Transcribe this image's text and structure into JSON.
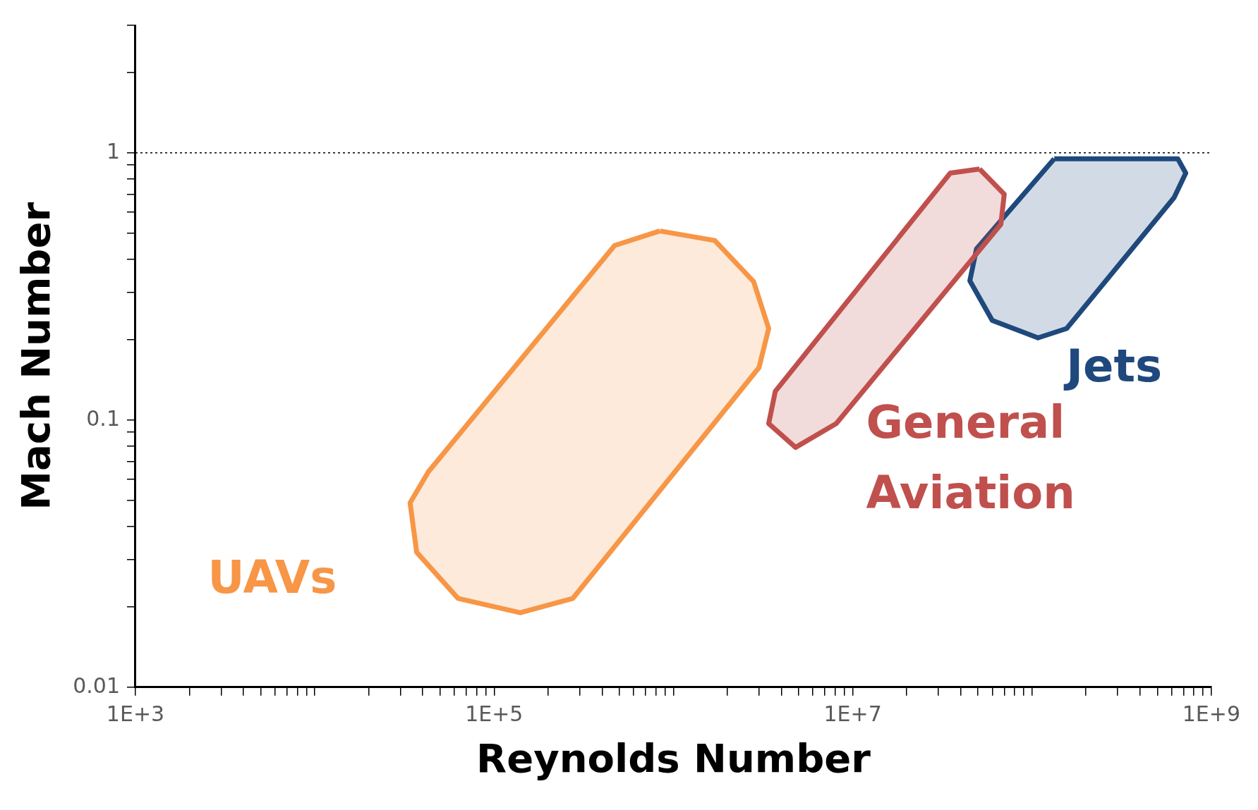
{
  "chart_data": {
    "type": "area",
    "xlabel": "Reynolds Number",
    "ylabel": "Mach Number",
    "log": "xy",
    "grid": false,
    "legend": false,
    "marker": "none",
    "line_style": "solid",
    "xlim": [
      1000,
      1000000000
    ],
    "ylim": [
      0.01,
      3
    ],
    "xticks": [
      {
        "value": 1000,
        "label": "1E+3"
      },
      {
        "value": 2000,
        "label": null
      },
      {
        "value": 3000,
        "label": null
      },
      {
        "value": 4000,
        "label": null
      },
      {
        "value": 5000,
        "label": null
      },
      {
        "value": 6000,
        "label": null
      },
      {
        "value": 7000,
        "label": null
      },
      {
        "value": 8000,
        "label": null
      },
      {
        "value": 9000,
        "label": null
      },
      {
        "value": 10000,
        "label": null
      },
      {
        "value": 20000,
        "label": null
      },
      {
        "value": 30000,
        "label": null
      },
      {
        "value": 40000,
        "label": null
      },
      {
        "value": 50000,
        "label": null
      },
      {
        "value": 60000,
        "label": null
      },
      {
        "value": 70000,
        "label": null
      },
      {
        "value": 80000,
        "label": null
      },
      {
        "value": 90000,
        "label": null
      },
      {
        "value": 100000,
        "label": "1E+5"
      },
      {
        "value": 200000,
        "label": null
      },
      {
        "value": 300000,
        "label": null
      },
      {
        "value": 400000,
        "label": null
      },
      {
        "value": 500000,
        "label": null
      },
      {
        "value": 600000,
        "label": null
      },
      {
        "value": 700000,
        "label": null
      },
      {
        "value": 800000,
        "label": null
      },
      {
        "value": 900000,
        "label": null
      },
      {
        "value": 1000000,
        "label": null
      },
      {
        "value": 2000000,
        "label": null
      },
      {
        "value": 3000000,
        "label": null
      },
      {
        "value": 4000000,
        "label": null
      },
      {
        "value": 5000000,
        "label": null
      },
      {
        "value": 6000000,
        "label": null
      },
      {
        "value": 7000000,
        "label": null
      },
      {
        "value": 8000000,
        "label": null
      },
      {
        "value": 9000000,
        "label": null
      },
      {
        "value": 10000000,
        "label": "1E+7"
      },
      {
        "value": 20000000,
        "label": null
      },
      {
        "value": 30000000,
        "label": null
      },
      {
        "value": 40000000,
        "label": null
      },
      {
        "value": 50000000,
        "label": null
      },
      {
        "value": 60000000,
        "label": null
      },
      {
        "value": 70000000,
        "label": null
      },
      {
        "value": 80000000,
        "label": null
      },
      {
        "value": 90000000,
        "label": null
      },
      {
        "value": 100000000,
        "label": null
      },
      {
        "value": 200000000,
        "label": null
      },
      {
        "value": 300000000,
        "label": null
      },
      {
        "value": 400000000,
        "label": null
      },
      {
        "value": 500000000,
        "label": null
      },
      {
        "value": 600000000,
        "label": null
      },
      {
        "value": 700000000,
        "label": null
      },
      {
        "value": 800000000,
        "label": null
      },
      {
        "value": 900000000,
        "label": null
      },
      {
        "value": 1000000000,
        "label": "1E+9"
      }
    ],
    "yticks": [
      0.01,
      {
        "value": 0.02,
        "label": null
      },
      {
        "value": 0.03,
        "label": null
      },
      {
        "value": 0.04,
        "label": null
      },
      {
        "value": 0.05,
        "label": null
      },
      {
        "value": 0.06,
        "label": null
      },
      {
        "value": 0.07,
        "label": null
      },
      {
        "value": 0.08,
        "label": null
      },
      {
        "value": 0.09,
        "label": null
      },
      0.1,
      {
        "value": 0.2,
        "label": null
      },
      {
        "value": 0.3,
        "label": null
      },
      {
        "value": 0.4,
        "label": null
      },
      {
        "value": 0.5,
        "label": null
      },
      {
        "value": 0.6,
        "label": null
      },
      {
        "value": 0.7,
        "label": null
      },
      {
        "value": 0.8,
        "label": null
      },
      {
        "value": 0.9,
        "label": null
      },
      1,
      {
        "value": 2,
        "label": null
      },
      {
        "value": 3,
        "label": null
      }
    ],
    "ref_lines": [
      {
        "axis": "y",
        "value": 1,
        "line_style": "dotted",
        "color": "#000000"
      }
    ],
    "series": [
      {
        "name": "UAVs",
        "color": "#f79646",
        "x": [
          840000,
          1700000,
          2800000,
          3400000,
          3000000,
          275000,
          140000,
          63000,
          37000,
          34000,
          43000,
          470000,
          840000
        ],
        "values": [
          0.51,
          0.47,
          0.33,
          0.22,
          0.157,
          0.0215,
          0.019,
          0.0215,
          0.032,
          0.049,
          0.064,
          0.45,
          0.51
        ]
      },
      {
        "name": "General Aviation",
        "color": "#c0504d",
        "x": [
          51000000,
          70000000,
          67000000,
          8100000,
          4800000,
          3400000,
          3700000,
          35000000,
          51000000
        ],
        "values": [
          0.87,
          0.7,
          0.54,
          0.097,
          0.079,
          0.097,
          0.128,
          0.84,
          0.87
        ]
      },
      {
        "name": "Jets",
        "color": "#1f497d",
        "x": [
          133000000,
          650000000,
          720000000,
          620000000,
          156000000,
          108000000,
          60000000,
          45000000,
          49000000,
          133000000
        ],
        "values": [
          0.95,
          0.95,
          0.84,
          0.68,
          0.22,
          0.203,
          0.236,
          0.332,
          0.437,
          0.95
        ]
      }
    ]
  }
}
